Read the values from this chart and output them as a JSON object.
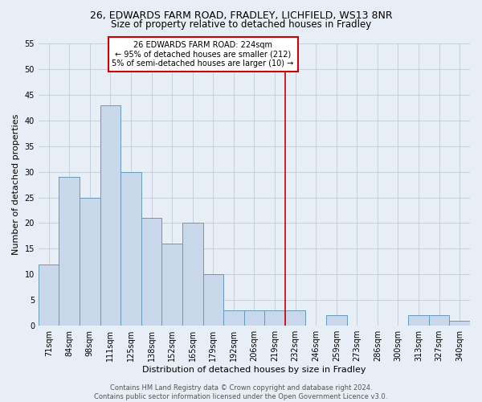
{
  "title_line1": "26, EDWARDS FARM ROAD, FRADLEY, LICHFIELD, WS13 8NR",
  "title_line2": "Size of property relative to detached houses in Fradley",
  "xlabel": "Distribution of detached houses by size in Fradley",
  "ylabel": "Number of detached properties",
  "bar_labels": [
    "71sqm",
    "84sqm",
    "98sqm",
    "111sqm",
    "125sqm",
    "138sqm",
    "152sqm",
    "165sqm",
    "179sqm",
    "192sqm",
    "206sqm",
    "219sqm",
    "232sqm",
    "246sqm",
    "259sqm",
    "273sqm",
    "286sqm",
    "300sqm",
    "313sqm",
    "327sqm",
    "340sqm"
  ],
  "bar_values": [
    12,
    29,
    25,
    43,
    30,
    21,
    16,
    20,
    10,
    3,
    3,
    3,
    3,
    0,
    2,
    0,
    0,
    0,
    2,
    2,
    1
  ],
  "bar_color": "#c8d8ea",
  "bar_edge_color": "#6699bb",
  "vline_color": "#cc0000",
  "annotation_text": "26 EDWARDS FARM ROAD: 224sqm\n← 95% of detached houses are smaller (212)\n5% of semi-detached houses are larger (10) →",
  "annotation_box_facecolor": "#ffffff",
  "annotation_box_edgecolor": "#cc0000",
  "ylim": [
    0,
    55
  ],
  "yticks": [
    0,
    5,
    10,
    15,
    20,
    25,
    30,
    35,
    40,
    45,
    50,
    55
  ],
  "grid_color": "#c0ccd8",
  "background_color": "#e8eef5",
  "footer_text": "Contains HM Land Registry data © Crown copyright and database right 2024.\nContains public sector information licensed under the Open Government Licence v3.0.",
  "title_fontsize": 9,
  "subtitle_fontsize": 8.5,
  "ylabel_fontsize": 8,
  "xlabel_fontsize": 8,
  "tick_fontsize": 7,
  "annotation_fontsize": 7,
  "footer_fontsize": 6
}
